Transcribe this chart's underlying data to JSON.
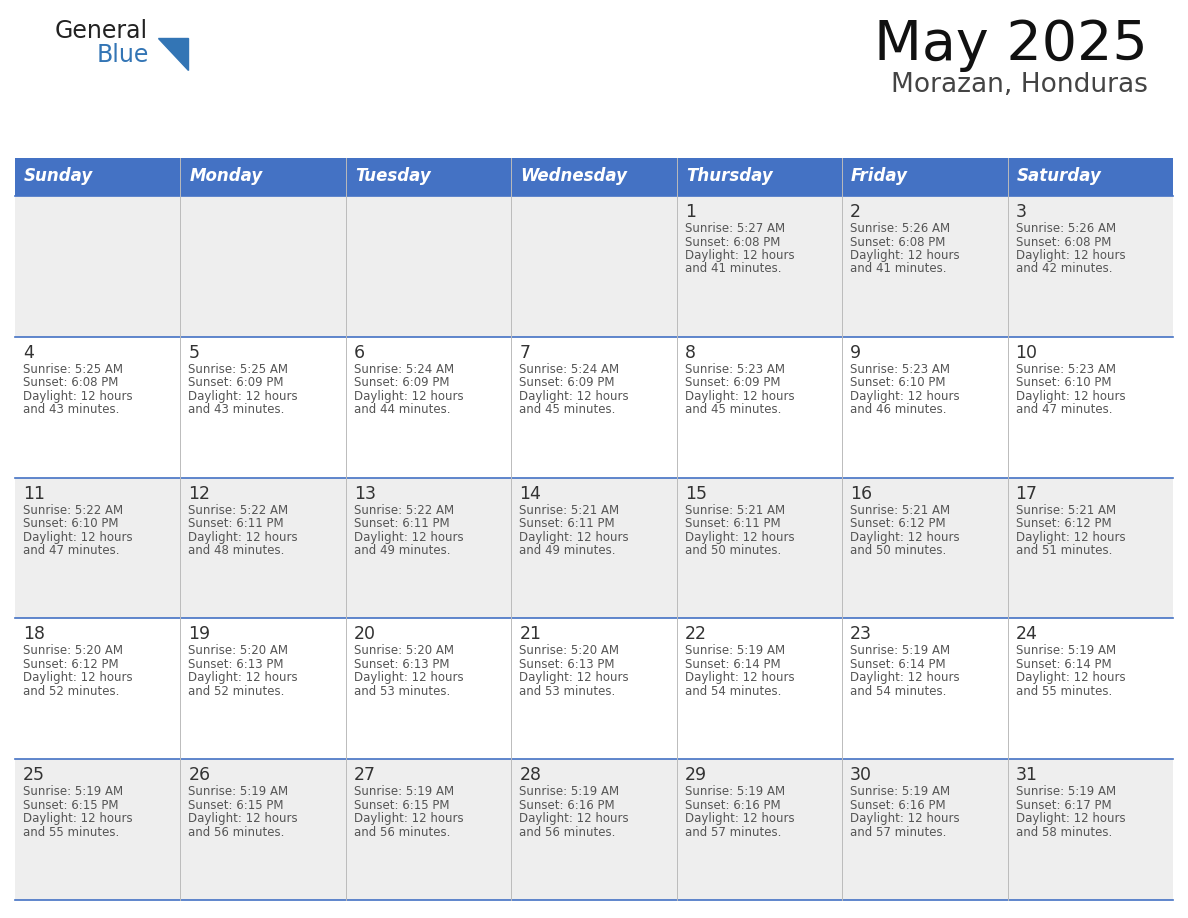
{
  "title": "May 2025",
  "subtitle": "Morazan, Honduras",
  "days_of_week": [
    "Sunday",
    "Monday",
    "Tuesday",
    "Wednesday",
    "Thursday",
    "Friday",
    "Saturday"
  ],
  "header_bg": "#4472C4",
  "header_text": "#FFFFFF",
  "cell_bg_row0": "#EEEEEE",
  "cell_bg_row1": "#FFFFFF",
  "cell_bg_row2": "#EEEEEE",
  "cell_bg_row3": "#FFFFFF",
  "cell_bg_row4": "#EEEEEE",
  "cell_border": "#4472C4",
  "day_num_color": "#333333",
  "text_color": "#555555",
  "title_color": "#111111",
  "logo_general_color": "#222222",
  "logo_blue_color": "#3375B5",
  "logo_triangle_color": "#3375B5",
  "calendar_data": [
    [
      null,
      null,
      null,
      null,
      {
        "day": 1,
        "sunrise": "5:27 AM",
        "sunset": "6:08 PM",
        "daylight": "12 hours and 41 minutes."
      },
      {
        "day": 2,
        "sunrise": "5:26 AM",
        "sunset": "6:08 PM",
        "daylight": "12 hours and 41 minutes."
      },
      {
        "day": 3,
        "sunrise": "5:26 AM",
        "sunset": "6:08 PM",
        "daylight": "12 hours and 42 minutes."
      }
    ],
    [
      {
        "day": 4,
        "sunrise": "5:25 AM",
        "sunset": "6:08 PM",
        "daylight": "12 hours and 43 minutes."
      },
      {
        "day": 5,
        "sunrise": "5:25 AM",
        "sunset": "6:09 PM",
        "daylight": "12 hours and 43 minutes."
      },
      {
        "day": 6,
        "sunrise": "5:24 AM",
        "sunset": "6:09 PM",
        "daylight": "12 hours and 44 minutes."
      },
      {
        "day": 7,
        "sunrise": "5:24 AM",
        "sunset": "6:09 PM",
        "daylight": "12 hours and 45 minutes."
      },
      {
        "day": 8,
        "sunrise": "5:23 AM",
        "sunset": "6:09 PM",
        "daylight": "12 hours and 45 minutes."
      },
      {
        "day": 9,
        "sunrise": "5:23 AM",
        "sunset": "6:10 PM",
        "daylight": "12 hours and 46 minutes."
      },
      {
        "day": 10,
        "sunrise": "5:23 AM",
        "sunset": "6:10 PM",
        "daylight": "12 hours and 47 minutes."
      }
    ],
    [
      {
        "day": 11,
        "sunrise": "5:22 AM",
        "sunset": "6:10 PM",
        "daylight": "12 hours and 47 minutes."
      },
      {
        "day": 12,
        "sunrise": "5:22 AM",
        "sunset": "6:11 PM",
        "daylight": "12 hours and 48 minutes."
      },
      {
        "day": 13,
        "sunrise": "5:22 AM",
        "sunset": "6:11 PM",
        "daylight": "12 hours and 49 minutes."
      },
      {
        "day": 14,
        "sunrise": "5:21 AM",
        "sunset": "6:11 PM",
        "daylight": "12 hours and 49 minutes."
      },
      {
        "day": 15,
        "sunrise": "5:21 AM",
        "sunset": "6:11 PM",
        "daylight": "12 hours and 50 minutes."
      },
      {
        "day": 16,
        "sunrise": "5:21 AM",
        "sunset": "6:12 PM",
        "daylight": "12 hours and 50 minutes."
      },
      {
        "day": 17,
        "sunrise": "5:21 AM",
        "sunset": "6:12 PM",
        "daylight": "12 hours and 51 minutes."
      }
    ],
    [
      {
        "day": 18,
        "sunrise": "5:20 AM",
        "sunset": "6:12 PM",
        "daylight": "12 hours and 52 minutes."
      },
      {
        "day": 19,
        "sunrise": "5:20 AM",
        "sunset": "6:13 PM",
        "daylight": "12 hours and 52 minutes."
      },
      {
        "day": 20,
        "sunrise": "5:20 AM",
        "sunset": "6:13 PM",
        "daylight": "12 hours and 53 minutes."
      },
      {
        "day": 21,
        "sunrise": "5:20 AM",
        "sunset": "6:13 PM",
        "daylight": "12 hours and 53 minutes."
      },
      {
        "day": 22,
        "sunrise": "5:19 AM",
        "sunset": "6:14 PM",
        "daylight": "12 hours and 54 minutes."
      },
      {
        "day": 23,
        "sunrise": "5:19 AM",
        "sunset": "6:14 PM",
        "daylight": "12 hours and 54 minutes."
      },
      {
        "day": 24,
        "sunrise": "5:19 AM",
        "sunset": "6:14 PM",
        "daylight": "12 hours and 55 minutes."
      }
    ],
    [
      {
        "day": 25,
        "sunrise": "5:19 AM",
        "sunset": "6:15 PM",
        "daylight": "12 hours and 55 minutes."
      },
      {
        "day": 26,
        "sunrise": "5:19 AM",
        "sunset": "6:15 PM",
        "daylight": "12 hours and 56 minutes."
      },
      {
        "day": 27,
        "sunrise": "5:19 AM",
        "sunset": "6:15 PM",
        "daylight": "12 hours and 56 minutes."
      },
      {
        "day": 28,
        "sunrise": "5:19 AM",
        "sunset": "6:16 PM",
        "daylight": "12 hours and 56 minutes."
      },
      {
        "day": 29,
        "sunrise": "5:19 AM",
        "sunset": "6:16 PM",
        "daylight": "12 hours and 57 minutes."
      },
      {
        "day": 30,
        "sunrise": "5:19 AM",
        "sunset": "6:16 PM",
        "daylight": "12 hours and 57 minutes."
      },
      {
        "day": 31,
        "sunrise": "5:19 AM",
        "sunset": "6:17 PM",
        "daylight": "12 hours and 58 minutes."
      }
    ]
  ],
  "row_bg_colors": [
    "#EEEEEE",
    "#FFFFFF",
    "#EEEEEE",
    "#FFFFFF",
    "#EEEEEE"
  ]
}
